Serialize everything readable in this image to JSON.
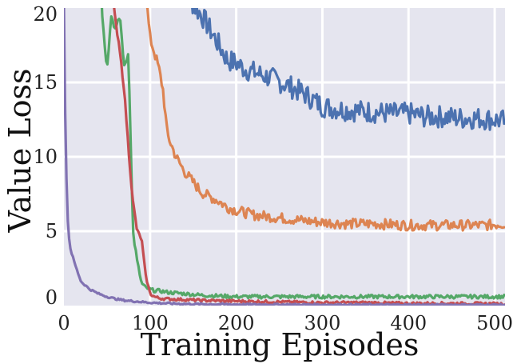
{
  "chart_data": {
    "type": "line",
    "xlabel": "Training Episodes",
    "ylabel": "Value Loss",
    "xlim": [
      0,
      512
    ],
    "ylim": [
      0,
      20
    ],
    "x_ticks": [
      0,
      100,
      200,
      300,
      400,
      500
    ],
    "y_ticks": [
      0,
      5,
      10,
      15,
      20
    ],
    "grid": true,
    "background": "#e5e5ef",
    "series": [
      {
        "color": "#4c72b0",
        "x": [
          130,
          140,
          150,
          160,
          170,
          180,
          190,
          200,
          210,
          220,
          240,
          260,
          280,
          300,
          320,
          340,
          360,
          380,
          400,
          420,
          440,
          460,
          480,
          500,
          512
        ],
        "y": [
          26,
          22,
          20.2,
          19.5,
          18.5,
          17.5,
          16.5,
          16.3,
          15.9,
          15.7,
          15.3,
          14.8,
          14.2,
          13.4,
          13.2,
          13.1,
          13.0,
          12.9,
          12.9,
          12.7,
          12.7,
          12.6,
          12.6,
          12.5,
          12.4
        ],
        "noise": 0.75
      },
      {
        "color": "#dd8452",
        "x": [
          88,
          95,
          100,
          105,
          110,
          115,
          120,
          130,
          140,
          150,
          160,
          170,
          180,
          190,
          200,
          220,
          250,
          280,
          300,
          330,
          360,
          400,
          430,
          460,
          490,
          512
        ],
        "y": [
          25,
          21,
          18,
          17,
          16,
          14.5,
          11.5,
          10.0,
          9.0,
          8.3,
          7.6,
          7.3,
          7.0,
          6.6,
          6.4,
          6.1,
          5.9,
          5.7,
          5.6,
          5.5,
          5.5,
          5.4,
          5.4,
          5.4,
          5.4,
          5.5
        ],
        "noise": 0.35
      },
      {
        "color": "#55a868",
        "x": [
          40,
          45,
          50,
          55,
          60,
          65,
          70,
          75,
          80,
          85,
          90,
          95,
          100,
          105,
          110,
          120,
          140,
          160,
          200,
          250,
          300,
          350,
          400,
          450,
          512
        ],
        "y": [
          25,
          19,
          16,
          19.5,
          18.5,
          19.5,
          16,
          17,
          5,
          3,
          1.5,
          1.2,
          1.1,
          1.0,
          1.0,
          0.9,
          0.8,
          0.7,
          0.6,
          0.6,
          0.6,
          0.6,
          0.6,
          0.6,
          0.6
        ],
        "noise": 0.2
      },
      {
        "color": "#c44e52",
        "x": [
          50,
          55,
          60,
          65,
          70,
          75,
          80,
          85,
          90,
          95,
          100,
          105,
          110,
          120,
          140,
          160,
          200,
          250,
          300,
          350,
          400,
          450,
          512
        ],
        "y": [
          25,
          22,
          19,
          17,
          14.5,
          10.5,
          7,
          5,
          4.5,
          2,
          0.8,
          0.6,
          0.5,
          0.45,
          0.4,
          0.35,
          0.3,
          0.25,
          0.2,
          0.2,
          0.15,
          0.15,
          0.12
        ],
        "noise": 0.15
      },
      {
        "color": "#8172b2",
        "x": [
          0,
          1,
          2,
          3,
          4,
          5,
          7,
          10,
          15,
          20,
          30,
          40,
          50,
          60,
          70,
          80,
          90,
          100,
          120,
          150,
          200,
          300,
          400,
          512
        ],
        "y": [
          20,
          15,
          11,
          8.5,
          6.5,
          5.0,
          4.0,
          3.3,
          2.4,
          1.6,
          1.1,
          0.8,
          0.6,
          0.45,
          0.35,
          0.3,
          0.25,
          0.2,
          0.15,
          0.1,
          0.08,
          0.06,
          0.05,
          0.05
        ],
        "noise": 0.1
      }
    ]
  }
}
